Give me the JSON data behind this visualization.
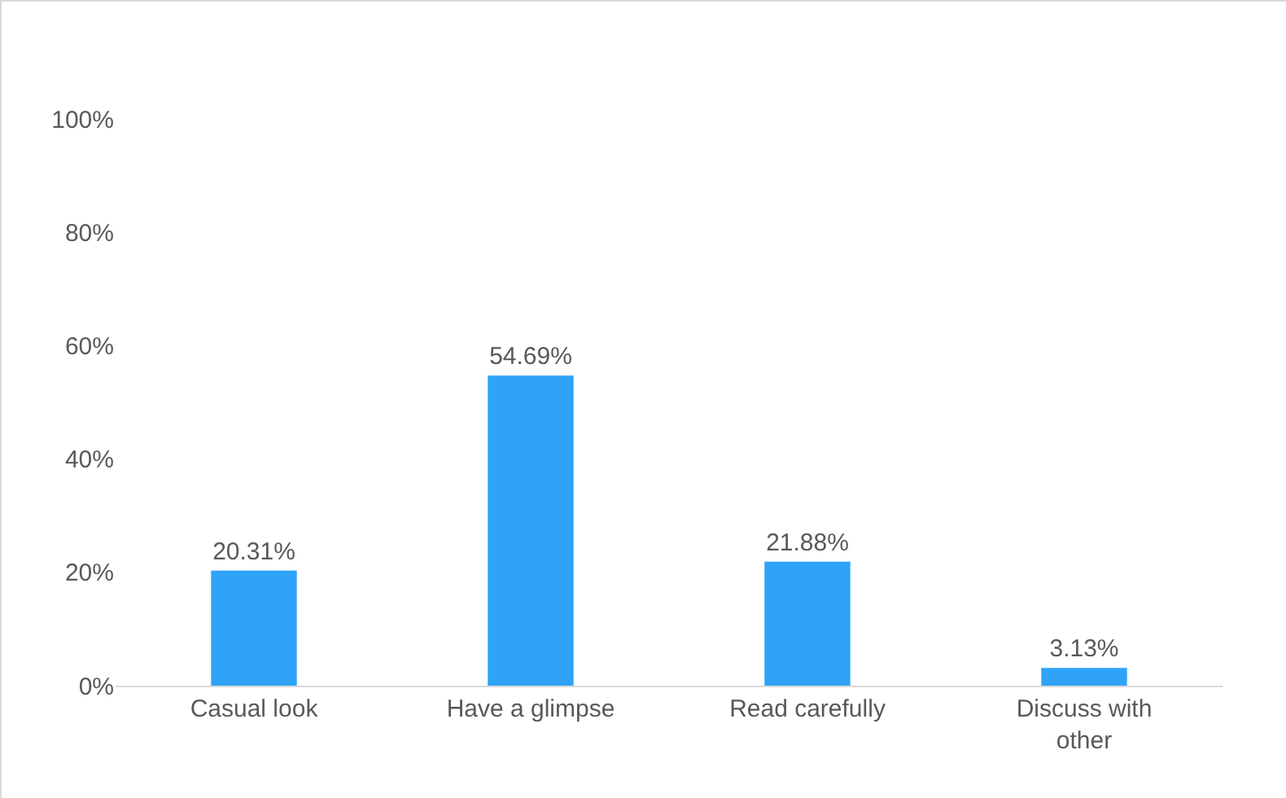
{
  "chart_data": {
    "type": "bar",
    "categories": [
      "Casual look",
      "Have a glimpse",
      "Read carefully",
      "Discuss with other"
    ],
    "values": [
      20.31,
      54.69,
      21.88,
      3.13
    ],
    "value_labels": [
      "20.31%",
      "54.69%",
      "21.88%",
      "3.13%"
    ],
    "color": "#2ea3f8",
    "ylim": [
      0,
      100
    ],
    "yticks": [
      {
        "value": 0,
        "label": "0%"
      },
      {
        "value": 20,
        "label": "20%"
      },
      {
        "value": 40,
        "label": "40%"
      },
      {
        "value": 60,
        "label": "60%"
      },
      {
        "value": 80,
        "label": "80%"
      },
      {
        "value": 100,
        "label": "100%"
      }
    ],
    "grid": false
  }
}
